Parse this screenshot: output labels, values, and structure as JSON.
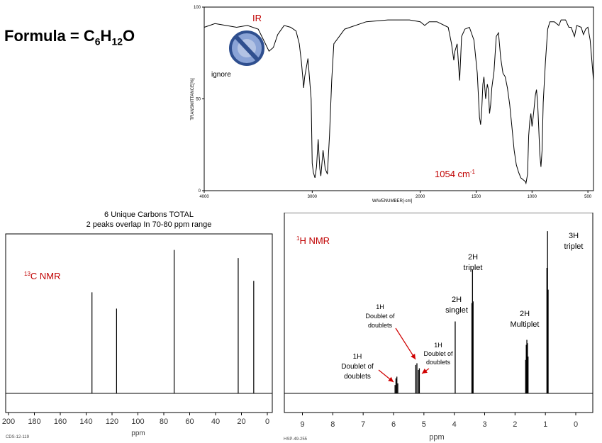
{
  "formula": {
    "prefix": "Formula = C",
    "c": "6",
    "h": "H",
    "h_count": "12",
    "o": "O"
  },
  "ir": {
    "label": "IR",
    "ignore_label": "ignore",
    "peak_label": "1054 cm",
    "peak_label_sup": "-1",
    "y_axis_label": "TRANSMITTANCE[%]",
    "x_axis_label": "WAVENUMBER[-cm]",
    "chart_data": {
      "type": "line",
      "xlim": [
        4000,
        450
      ],
      "ylim": [
        0,
        100
      ],
      "x_ticks": [
        "4000",
        "3000",
        "2000",
        "1500",
        "1000",
        "500"
      ],
      "x_tick_values": [
        4000,
        3000,
        2000,
        1500,
        1000,
        500
      ],
      "y_ticks": [
        "0",
        "50",
        "100"
      ],
      "y_tick_values": [
        0,
        50,
        100
      ],
      "points": [
        [
          4000,
          89
        ],
        [
          3900,
          91
        ],
        [
          3800,
          90
        ],
        [
          3700,
          89
        ],
        [
          3600,
          90
        ],
        [
          3500,
          88
        ],
        [
          3450,
          82
        ],
        [
          3400,
          76
        ],
        [
          3360,
          78
        ],
        [
          3320,
          85
        ],
        [
          3260,
          90
        ],
        [
          3200,
          89
        ],
        [
          3150,
          87
        ],
        [
          3120,
          80
        ],
        [
          3100,
          70
        ],
        [
          3085,
          60
        ],
        [
          3080,
          56
        ],
        [
          3070,
          62
        ],
        [
          3040,
          72
        ],
        [
          3010,
          50
        ],
        [
          3000,
          15
        ],
        [
          2990,
          10
        ],
        [
          2975,
          7
        ],
        [
          2960,
          13
        ],
        [
          2945,
          28
        ],
        [
          2930,
          12
        ],
        [
          2920,
          8
        ],
        [
          2900,
          22
        ],
        [
          2880,
          12
        ],
        [
          2860,
          9
        ],
        [
          2840,
          30
        ],
        [
          2820,
          60
        ],
        [
          2800,
          80
        ],
        [
          2700,
          88
        ],
        [
          2500,
          92
        ],
        [
          2300,
          93
        ],
        [
          2100,
          93
        ],
        [
          2000,
          92
        ],
        [
          1960,
          90
        ],
        [
          1920,
          92
        ],
        [
          1850,
          92
        ],
        [
          1750,
          89
        ],
        [
          1720,
          80
        ],
        [
          1700,
          71
        ],
        [
          1690,
          76
        ],
        [
          1670,
          80
        ],
        [
          1648,
          60
        ],
        [
          1640,
          70
        ],
        [
          1630,
          84
        ],
        [
          1600,
          88
        ],
        [
          1560,
          89
        ],
        [
          1520,
          82
        ],
        [
          1490,
          64
        ],
        [
          1470,
          40
        ],
        [
          1460,
          36
        ],
        [
          1450,
          44
        ],
        [
          1440,
          58
        ],
        [
          1430,
          62
        ],
        [
          1415,
          50
        ],
        [
          1400,
          58
        ],
        [
          1390,
          55
        ],
        [
          1380,
          42
        ],
        [
          1370,
          47
        ],
        [
          1360,
          56
        ],
        [
          1340,
          65
        ],
        [
          1320,
          84
        ],
        [
          1300,
          86
        ],
        [
          1280,
          72
        ],
        [
          1260,
          64
        ],
        [
          1240,
          62
        ],
        [
          1220,
          56
        ],
        [
          1200,
          47
        ],
        [
          1180,
          35
        ],
        [
          1160,
          22
        ],
        [
          1140,
          14
        ],
        [
          1120,
          10
        ],
        [
          1100,
          7
        ],
        [
          1080,
          6
        ],
        [
          1060,
          5
        ],
        [
          1054,
          4
        ],
        [
          1040,
          9
        ],
        [
          1030,
          30
        ],
        [
          1020,
          38
        ],
        [
          1010,
          42
        ],
        [
          1000,
          35
        ],
        [
          990,
          40
        ],
        [
          980,
          46
        ],
        [
          970,
          52
        ],
        [
          960,
          55
        ],
        [
          950,
          48
        ],
        [
          940,
          34
        ],
        [
          930,
          20
        ],
        [
          920,
          13
        ],
        [
          910,
          22
        ],
        [
          900,
          48
        ],
        [
          880,
          70
        ],
        [
          860,
          88
        ],
        [
          840,
          92
        ],
        [
          800,
          92
        ],
        [
          760,
          90
        ],
        [
          740,
          93
        ],
        [
          700,
          93
        ],
        [
          670,
          89
        ],
        [
          650,
          89
        ],
        [
          620,
          84
        ],
        [
          610,
          87
        ],
        [
          600,
          90
        ],
        [
          560,
          89
        ],
        [
          540,
          85
        ],
        [
          520,
          88
        ],
        [
          500,
          89
        ],
        [
          480,
          82
        ],
        [
          450,
          60
        ]
      ]
    }
  },
  "c13": {
    "note_line1": "6 Unique Carbons TOTAL",
    "note_line2": "2 peaks overlap In 70-80 ppm range",
    "label_sup": "13",
    "label": "C NMR",
    "x_axis_label": "ppm",
    "code": "CDS-12-119",
    "chart_data": {
      "type": "bar",
      "xlim": [
        200,
        0
      ],
      "x_ticks": [
        "200",
        "180",
        "160",
        "140",
        "120",
        "100",
        "80",
        "60",
        "40",
        "20",
        "0"
      ],
      "x_tick_values": [
        200,
        180,
        160,
        140,
        120,
        100,
        80,
        60,
        40,
        20,
        0
      ],
      "peaks_ppm": [
        135.5,
        116.5,
        72.0,
        22.5,
        10.5
      ],
      "relative_heights": [
        0.62,
        0.52,
        0.88,
        0.83,
        0.69
      ]
    }
  },
  "h1": {
    "label_sup": "1",
    "label": "H NMR",
    "x_axis_label": "ppm",
    "code": "HSP-49-255",
    "annotations": [
      {
        "lines": [
          "1H",
          "Doublet of",
          "doublets"
        ]
      },
      {
        "lines": [
          "1H",
          "Doublet of",
          "doublets"
        ]
      },
      {
        "lines": [
          "1H",
          "Doublet of",
          "doublets"
        ]
      },
      {
        "lines": [
          "2H",
          "singlet"
        ]
      },
      {
        "lines": [
          "2H",
          "triplet"
        ]
      },
      {
        "lines": [
          "2H",
          "Multiplet"
        ]
      },
      {
        "lines": [
          "3H",
          "triplet"
        ]
      }
    ],
    "chart_data": {
      "type": "bar",
      "xlim": [
        9.5,
        -0.5
      ],
      "x_ticks": [
        "9",
        "8",
        "7",
        "6",
        "5",
        "4",
        "3",
        "2",
        "1",
        "0"
      ],
      "x_tick_values": [
        9,
        8,
        7,
        6,
        5,
        4,
        3,
        2,
        1,
        0
      ],
      "peaks": [
        {
          "ppm": 5.95,
          "height": 0.05
        },
        {
          "ppm": 5.92,
          "height": 0.09
        },
        {
          "ppm": 5.89,
          "height": 0.1
        },
        {
          "ppm": 5.86,
          "height": 0.06
        },
        {
          "ppm": 5.27,
          "height": 0.17
        },
        {
          "ppm": 5.23,
          "height": 0.18
        },
        {
          "ppm": 5.18,
          "height": 0.14
        },
        {
          "ppm": 5.15,
          "height": 0.15
        },
        {
          "ppm": 3.97,
          "height": 0.43
        },
        {
          "ppm": 3.42,
          "height": 0.54
        },
        {
          "ppm": 3.4,
          "height": 0.74
        },
        {
          "ppm": 3.38,
          "height": 0.55
        },
        {
          "ppm": 1.65,
          "height": 0.2
        },
        {
          "ppm": 1.63,
          "height": 0.29
        },
        {
          "ppm": 1.61,
          "height": 0.32
        },
        {
          "ppm": 1.59,
          "height": 0.3
        },
        {
          "ppm": 1.57,
          "height": 0.22
        },
        {
          "ppm": 0.95,
          "height": 0.75
        },
        {
          "ppm": 0.93,
          "height": 0.97
        },
        {
          "ppm": 0.91,
          "height": 0.62
        }
      ]
    }
  }
}
